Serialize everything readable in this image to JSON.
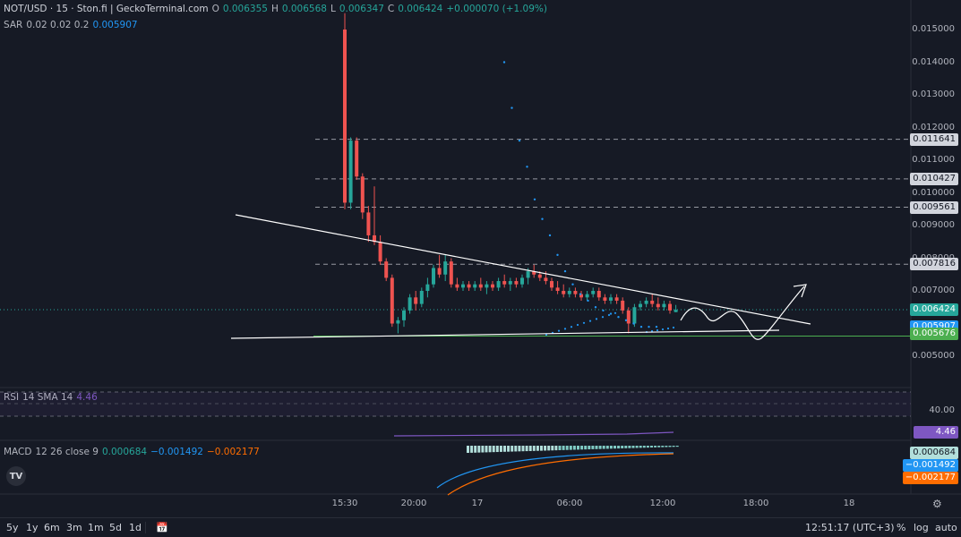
{
  "header": {
    "symbol": "NOT/USD · 15 · Ston.fi | GeckoTerminal.com",
    "o_label": "O",
    "o_value": "0.006355",
    "h_label": "H",
    "h_value": "0.006568",
    "l_label": "L",
    "l_value": "0.006347",
    "c_label": "C",
    "c_value": "0.006424",
    "change": "+0.000070 (+1.09%)"
  },
  "sar": {
    "label": "SAR",
    "params": "0.02 0.02 0.2",
    "value": "0.005907"
  },
  "rsi": {
    "label": "RSI",
    "params": "14 SMA 14",
    "value": "4.46",
    "axis_label": "40.00",
    "badge": "4.46"
  },
  "macd": {
    "label": "MACD",
    "params": "12 26 close 9",
    "v1": "0.000684",
    "v2": "−0.001492",
    "v3": "−0.002177",
    "badges": [
      "0.000684",
      "−0.001492",
      "−0.002177"
    ]
  },
  "price_axis": {
    "ticks": [
      "0.015000",
      "0.014000",
      "0.013000",
      "0.012000",
      "0.011000",
      "0.010000",
      "0.009000",
      "0.008000",
      "0.007000",
      "0.005000"
    ],
    "badges": [
      {
        "value": "0.011641",
        "color": "#d1d4dc",
        "text_color": "#131722"
      },
      {
        "value": "0.010427",
        "color": "#d1d4dc",
        "text_color": "#131722"
      },
      {
        "value": "0.009561",
        "color": "#d1d4dc",
        "text_color": "#131722"
      },
      {
        "value": "0.007816",
        "color": "#d1d4dc",
        "text_color": "#131722"
      },
      {
        "value": "0.006424",
        "color": "#26a69a",
        "text_color": "#ffffff"
      },
      {
        "value": "0.005907",
        "color": "#2196f3",
        "text_color": "#ffffff"
      },
      {
        "value": "0.005676",
        "color": "#4caf50",
        "text_color": "#ffffff"
      }
    ]
  },
  "time_axis": [
    "15:30",
    "20:00",
    "17",
    "06:00",
    "12:00",
    "18:00",
    "18"
  ],
  "bottom_bar": {
    "timeframes": [
      "5y",
      "1y",
      "6m",
      "3m",
      "1m",
      "5d",
      "1d"
    ],
    "clock": "12:51:17 (UTC+3)",
    "percent": "%",
    "log": "log",
    "auto": "auto"
  },
  "logo_text": "TV",
  "colors": {
    "up": "#26a69a",
    "down": "#ef5350",
    "sar": "#2196f3",
    "macd_line": "#2196f3",
    "signal_line": "#ff6d00",
    "rsi": "#7e57c2",
    "trend": "#ffffff",
    "support": "#4caf50"
  },
  "chart_data": {
    "type": "candlestick",
    "interval": "15",
    "ylim": [
      0.0047,
      0.0155
    ],
    "candles": [
      {
        "o": 0.015,
        "h": 0.0155,
        "l": 0.0095,
        "c": 0.0097
      },
      {
        "o": 0.0097,
        "h": 0.0117,
        "l": 0.0095,
        "c": 0.0116
      },
      {
        "o": 0.0116,
        "h": 0.0117,
        "l": 0.0104,
        "c": 0.0105
      },
      {
        "o": 0.0105,
        "h": 0.0106,
        "l": 0.0092,
        "c": 0.0094
      },
      {
        "o": 0.0094,
        "h": 0.0096,
        "l": 0.0085,
        "c": 0.0087
      },
      {
        "o": 0.0087,
        "h": 0.0102,
        "l": 0.0084,
        "c": 0.0085
      },
      {
        "o": 0.0085,
        "h": 0.0087,
        "l": 0.0078,
        "c": 0.0079
      },
      {
        "o": 0.0079,
        "h": 0.008,
        "l": 0.0073,
        "c": 0.0074
      },
      {
        "o": 0.0074,
        "h": 0.0075,
        "l": 0.0059,
        "c": 0.006
      },
      {
        "o": 0.006,
        "h": 0.0062,
        "l": 0.0057,
        "c": 0.0061
      },
      {
        "o": 0.0061,
        "h": 0.0065,
        "l": 0.0059,
        "c": 0.0064
      },
      {
        "o": 0.0064,
        "h": 0.0069,
        "l": 0.0063,
        "c": 0.0068
      },
      {
        "o": 0.0068,
        "h": 0.007,
        "l": 0.0064,
        "c": 0.0066
      },
      {
        "o": 0.0066,
        "h": 0.0071,
        "l": 0.0065,
        "c": 0.007
      },
      {
        "o": 0.007,
        "h": 0.0074,
        "l": 0.0068,
        "c": 0.0072
      },
      {
        "o": 0.0072,
        "h": 0.0078,
        "l": 0.0071,
        "c": 0.0077
      },
      {
        "o": 0.0077,
        "h": 0.0081,
        "l": 0.0074,
        "c": 0.0075
      },
      {
        "o": 0.0075,
        "h": 0.0081,
        "l": 0.0073,
        "c": 0.0079
      },
      {
        "o": 0.0079,
        "h": 0.008,
        "l": 0.0071,
        "c": 0.0072
      },
      {
        "o": 0.0072,
        "h": 0.0074,
        "l": 0.007,
        "c": 0.0071
      },
      {
        "o": 0.0071,
        "h": 0.0073,
        "l": 0.007,
        "c": 0.0072
      },
      {
        "o": 0.0072,
        "h": 0.0073,
        "l": 0.007,
        "c": 0.0071
      },
      {
        "o": 0.0071,
        "h": 0.0073,
        "l": 0.007,
        "c": 0.0072
      },
      {
        "o": 0.0072,
        "h": 0.0074,
        "l": 0.007,
        "c": 0.0071
      },
      {
        "o": 0.0071,
        "h": 0.0073,
        "l": 0.0069,
        "c": 0.0072
      },
      {
        "o": 0.0072,
        "h": 0.0073,
        "l": 0.007,
        "c": 0.0071
      },
      {
        "o": 0.0071,
        "h": 0.0074,
        "l": 0.007,
        "c": 0.0073
      },
      {
        "o": 0.0073,
        "h": 0.0075,
        "l": 0.0071,
        "c": 0.0072
      },
      {
        "o": 0.0072,
        "h": 0.0074,
        "l": 0.007,
        "c": 0.0073
      },
      {
        "o": 0.0073,
        "h": 0.0074,
        "l": 0.0071,
        "c": 0.0072
      },
      {
        "o": 0.0072,
        "h": 0.0075,
        "l": 0.0071,
        "c": 0.0074
      },
      {
        "o": 0.0074,
        "h": 0.0077,
        "l": 0.0072,
        "c": 0.0076
      },
      {
        "o": 0.0076,
        "h": 0.0078,
        "l": 0.0074,
        "c": 0.0075
      },
      {
        "o": 0.0075,
        "h": 0.0076,
        "l": 0.0073,
        "c": 0.0074
      },
      {
        "o": 0.0074,
        "h": 0.0076,
        "l": 0.0072,
        "c": 0.0073
      },
      {
        "o": 0.0073,
        "h": 0.0074,
        "l": 0.007,
        "c": 0.0071
      },
      {
        "o": 0.0071,
        "h": 0.0073,
        "l": 0.0069,
        "c": 0.007
      },
      {
        "o": 0.007,
        "h": 0.0072,
        "l": 0.0068,
        "c": 0.0069
      },
      {
        "o": 0.0069,
        "h": 0.0071,
        "l": 0.0068,
        "c": 0.007
      },
      {
        "o": 0.007,
        "h": 0.0071,
        "l": 0.0068,
        "c": 0.0069
      },
      {
        "o": 0.0069,
        "h": 0.007,
        "l": 0.0067,
        "c": 0.0068
      },
      {
        "o": 0.0068,
        "h": 0.007,
        "l": 0.0067,
        "c": 0.0069
      },
      {
        "o": 0.0069,
        "h": 0.0071,
        "l": 0.0068,
        "c": 0.007
      },
      {
        "o": 0.007,
        "h": 0.0071,
        "l": 0.0067,
        "c": 0.0068
      },
      {
        "o": 0.0068,
        "h": 0.0069,
        "l": 0.0066,
        "c": 0.0067
      },
      {
        "o": 0.0067,
        "h": 0.0069,
        "l": 0.0066,
        "c": 0.0068
      },
      {
        "o": 0.0068,
        "h": 0.0069,
        "l": 0.0066,
        "c": 0.0067
      },
      {
        "o": 0.0067,
        "h": 0.0068,
        "l": 0.0063,
        "c": 0.0064
      },
      {
        "o": 0.0064,
        "h": 0.0065,
        "l": 0.0057,
        "c": 0.006
      },
      {
        "o": 0.006,
        "h": 0.0066,
        "l": 0.0059,
        "c": 0.0065
      },
      {
        "o": 0.0065,
        "h": 0.0067,
        "l": 0.0064,
        "c": 0.0066
      },
      {
        "o": 0.0066,
        "h": 0.0068,
        "l": 0.0065,
        "c": 0.0067
      },
      {
        "o": 0.0067,
        "h": 0.0069,
        "l": 0.0065,
        "c": 0.0066
      },
      {
        "o": 0.0066,
        "h": 0.0068,
        "l": 0.0064,
        "c": 0.0065
      },
      {
        "o": 0.0065,
        "h": 0.0067,
        "l": 0.0064,
        "c": 0.0066
      },
      {
        "o": 0.0066,
        "h": 0.0067,
        "l": 0.0063,
        "c": 0.0064
      },
      {
        "o": 0.00635,
        "h": 0.00657,
        "l": 0.00635,
        "c": 0.00642
      }
    ],
    "sar_points": [
      0.014,
      0.0126,
      0.0116,
      0.0108,
      0.0098,
      0.0092,
      0.0087,
      0.0081,
      0.0076,
      0.0072,
      0.0069,
      0.0067,
      0.0065,
      0.0064,
      0.0063,
      0.0062,
      0.0061,
      0.006,
      0.0059,
      0.0059,
      0.0059
    ],
    "horizontal_levels": [
      0.011641,
      0.010427,
      0.009561,
      0.007816
    ],
    "current_price": 0.006424
  }
}
